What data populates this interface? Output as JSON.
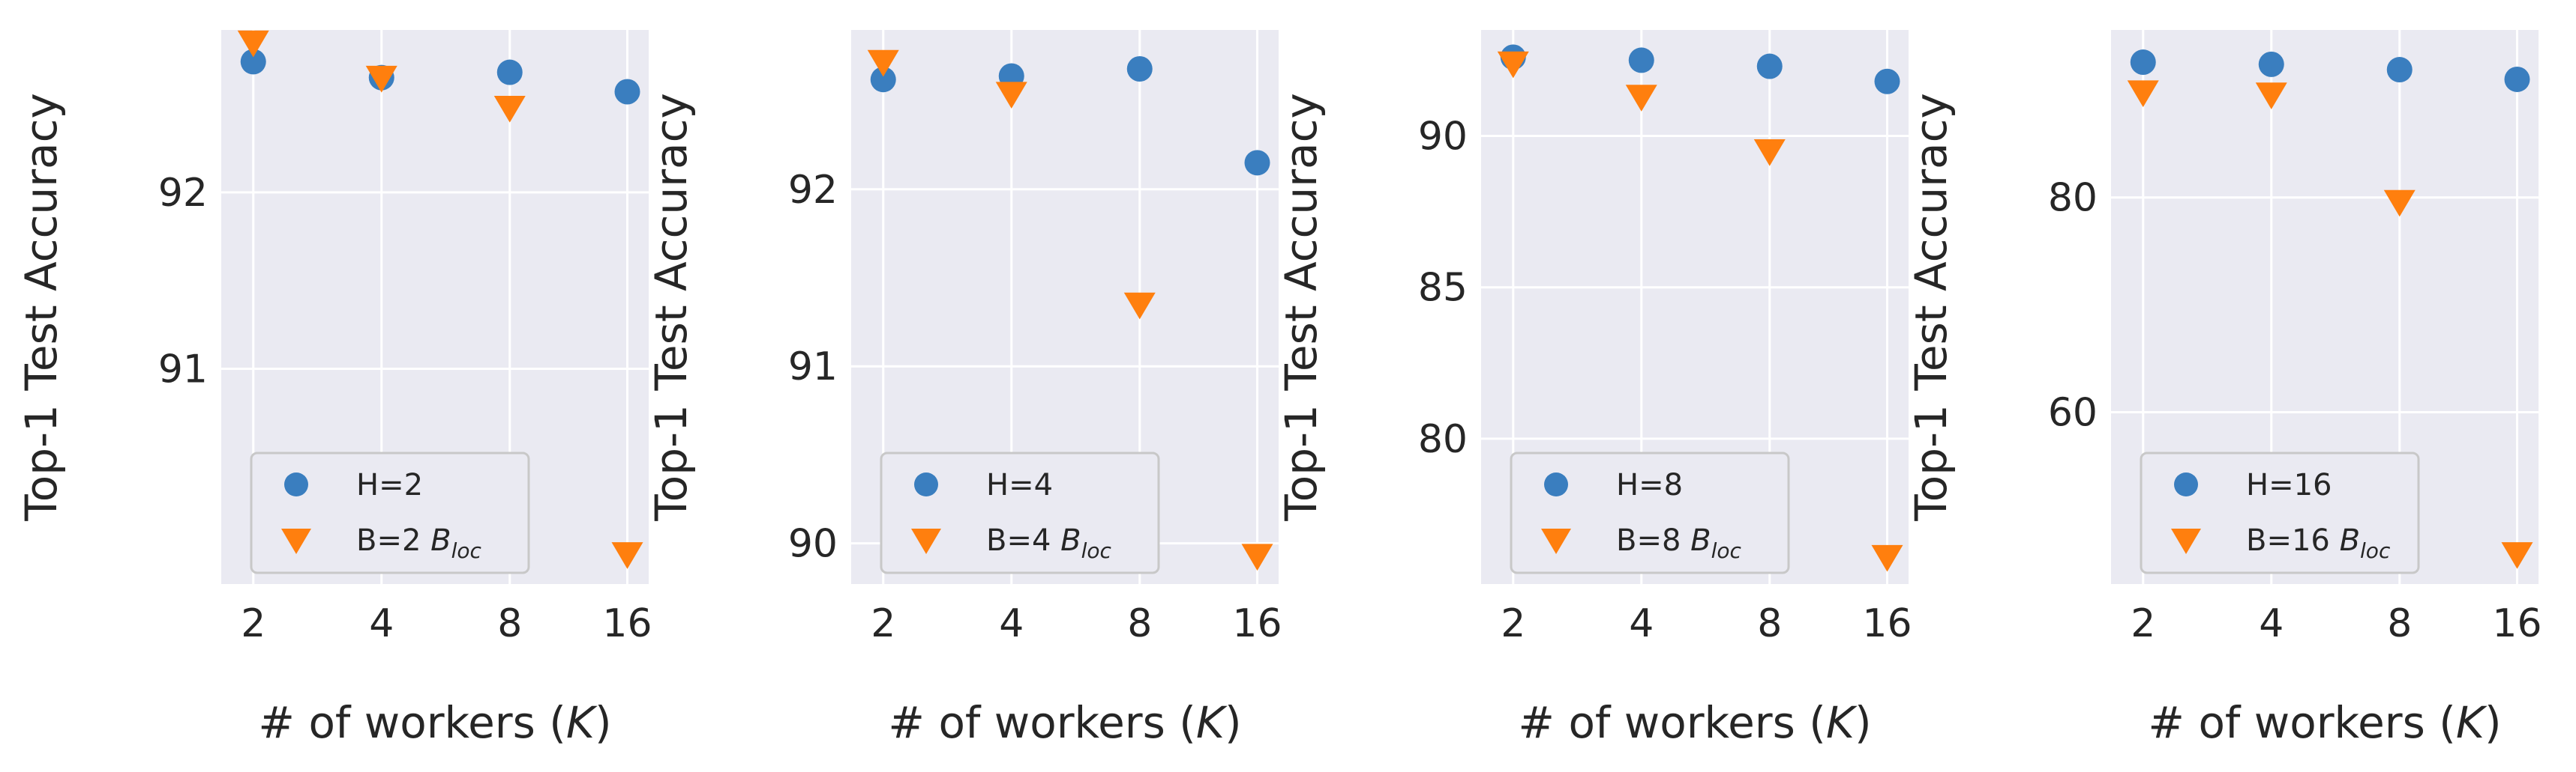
{
  "chart_data": [
    {
      "type": "scatter",
      "x": [
        2,
        4,
        8,
        16
      ],
      "xlabel": "# of workers (K)",
      "ylabel": "Top-1 Test Accuracy",
      "yticks": [
        91,
        92
      ],
      "ylim": [
        89.78,
        92.92
      ],
      "series": [
        {
          "name": "H=2",
          "marker": "circle",
          "color": "#3a7ebf",
          "values": [
            92.74,
            92.65,
            92.68,
            92.57
          ]
        },
        {
          "name": "B=2 B_loc",
          "legend_main": "B=2 ",
          "legend_math": "B",
          "legend_sub": "loc",
          "marker": "triangle-down",
          "color": "#ff7f0e",
          "values": [
            92.85,
            92.65,
            92.48,
            89.95
          ]
        }
      ],
      "legend": "lower-left",
      "grid": true
    },
    {
      "type": "scatter",
      "x": [
        2,
        4,
        8,
        16
      ],
      "xlabel": "# of workers (K)",
      "ylabel": "Top-1 Test Accuracy",
      "yticks": [
        90,
        91,
        92
      ],
      "ylim": [
        89.77,
        92.9
      ],
      "series": [
        {
          "name": "H=4",
          "marker": "circle",
          "color": "#3a7ebf",
          "values": [
            92.62,
            92.64,
            92.68,
            92.15
          ]
        },
        {
          "name": "B=4 B_loc",
          "legend_main": "B=4 ",
          "legend_math": "B",
          "legend_sub": "loc",
          "marker": "triangle-down",
          "color": "#ff7f0e",
          "values": [
            92.72,
            92.54,
            91.35,
            89.93
          ]
        }
      ],
      "legend": "lower-left",
      "grid": true
    },
    {
      "type": "scatter",
      "x": [
        2,
        4,
        8,
        16
      ],
      "xlabel": "# of workers (K)",
      "ylabel": "Top-1 Test Accuracy",
      "yticks": [
        80,
        85,
        90
      ],
      "ylim": [
        75.2,
        93.5
      ],
      "series": [
        {
          "name": "H=8",
          "marker": "circle",
          "color": "#3a7ebf",
          "values": [
            92.6,
            92.5,
            92.3,
            91.8
          ]
        },
        {
          "name": "B=8 B_loc",
          "legend_main": "B=8 ",
          "legend_math": "B",
          "legend_sub": "loc",
          "marker": "triangle-down",
          "color": "#ff7f0e",
          "values": [
            92.4,
            91.3,
            89.5,
            76.1
          ]
        }
      ],
      "legend": "lower-left",
      "grid": true
    },
    {
      "type": "scatter",
      "x": [
        2,
        4,
        8,
        16
      ],
      "xlabel": "# of workers (K)",
      "ylabel": "Top-1 Test Accuracy",
      "yticks": [
        60,
        80
      ],
      "ylim": [
        44,
        95.6
      ],
      "series": [
        {
          "name": "H=16",
          "marker": "circle",
          "color": "#3a7ebf",
          "values": [
            92.6,
            92.4,
            91.9,
            91.0
          ]
        },
        {
          "name": "B=16 B_loc",
          "legend_main": "B=16 ",
          "legend_math": "B",
          "legend_sub": "loc",
          "marker": "triangle-down",
          "color": "#ff7f0e",
          "values": [
            89.8,
            89.6,
            79.6,
            46.8
          ]
        }
      ],
      "legend": "lower-left",
      "grid": true
    }
  ],
  "colors": {
    "panel_bg": "#eaeaf2",
    "grid": "#ffffff",
    "legend_bg": "#eaeaf2",
    "legend_border": "#c8c8c8"
  }
}
